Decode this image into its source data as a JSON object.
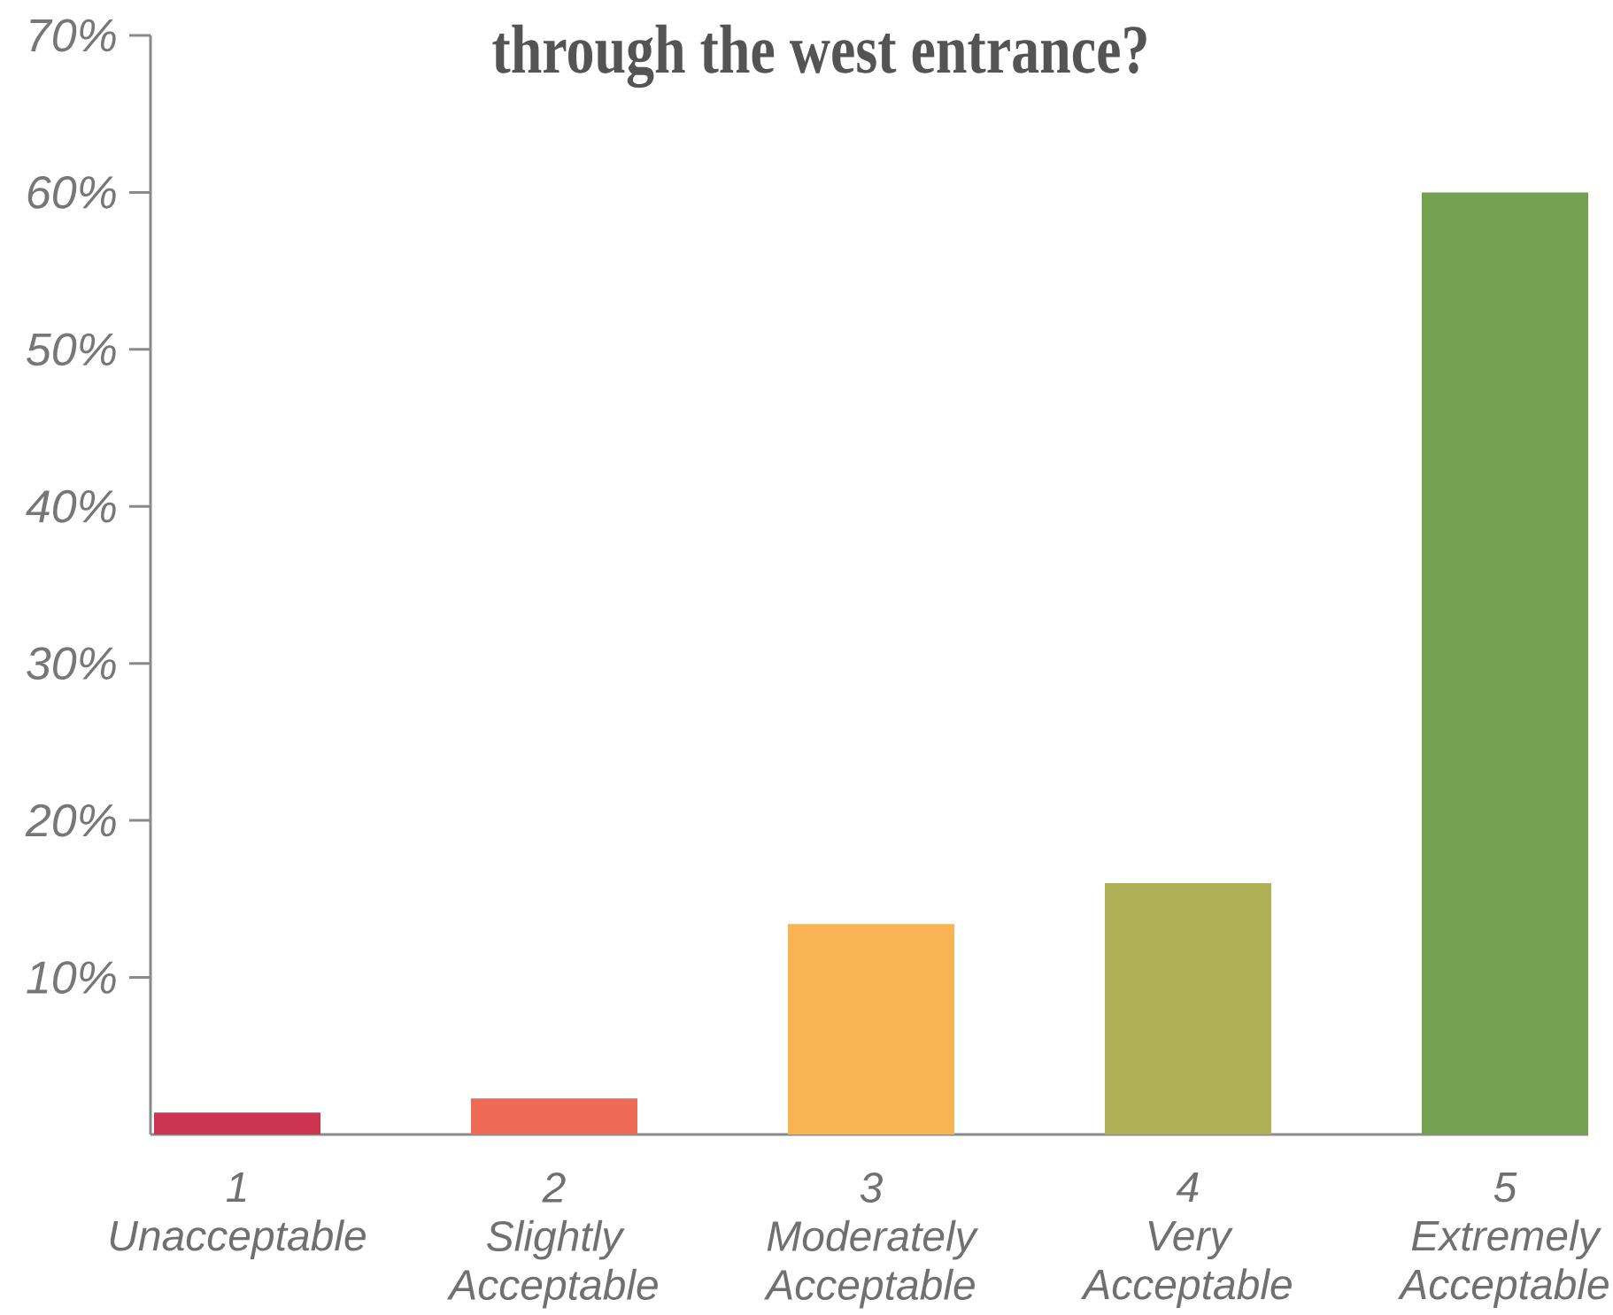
{
  "chart_data": {
    "type": "bar",
    "title": "through the west entrance?",
    "categories": [
      "1 Unacceptable",
      "2 Slightly Acceptable",
      "3 Moderately Acceptable",
      "4 Very Acceptable",
      "5 Extremely Acceptable"
    ],
    "values": [
      1.4,
      2.3,
      13.4,
      16,
      60
    ],
    "colors": [
      "#cc3450",
      "#ee6a55",
      "#f9b352",
      "#afaf55",
      "#74a14f"
    ],
    "ylim": [
      0,
      70
    ],
    "yticks": [
      {
        "value": 10,
        "label": "10%"
      },
      {
        "value": 20,
        "label": "20%"
      },
      {
        "value": 30,
        "label": "30%"
      },
      {
        "value": 40,
        "label": "40%"
      },
      {
        "value": 50,
        "label": "50%"
      },
      {
        "value": 60,
        "label": "60%"
      },
      {
        "value": 70,
        "label": "70%"
      }
    ]
  }
}
